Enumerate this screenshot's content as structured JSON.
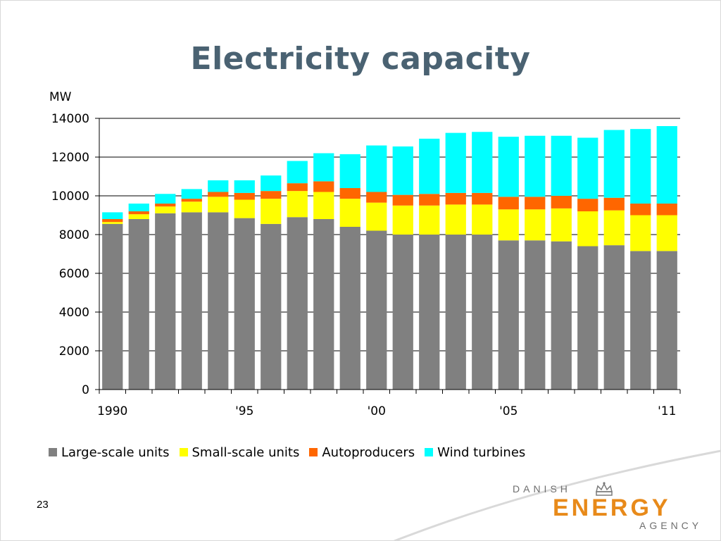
{
  "slide": {
    "title": "Electricity capacity",
    "page_number": "23"
  },
  "branding": {
    "line1": "DANISH",
    "line2": "ENERGY",
    "line3": "AGENCY",
    "accent_color": "#e88a1a",
    "logo_icon": "crown-icon"
  },
  "chart_data": {
    "type": "bar",
    "stacked": true,
    "ylabel": "MW",
    "ylim": [
      0,
      14000
    ],
    "yticks": [
      0,
      2000,
      4000,
      6000,
      8000,
      10000,
      12000,
      14000
    ],
    "grid": true,
    "legend_position": "bottom",
    "categories": [
      "1990",
      "1991",
      "1992",
      "1993",
      "1994",
      "1995",
      "1996",
      "1997",
      "1998",
      "1999",
      "2000",
      "2001",
      "2002",
      "2003",
      "2004",
      "2005",
      "2006",
      "2007",
      "2008",
      "2009",
      "2010",
      "2011"
    ],
    "x_tick_labels": [
      {
        "index": 0,
        "label": "1990"
      },
      {
        "index": 5,
        "label": "'95"
      },
      {
        "index": 10,
        "label": "'00"
      },
      {
        "index": 15,
        "label": "'05"
      },
      {
        "index": 21,
        "label": "'11"
      }
    ],
    "series": [
      {
        "name": "Large-scale units",
        "color": "#808080",
        "values": [
          8550,
          8800,
          9100,
          9150,
          9150,
          8850,
          8550,
          8900,
          8800,
          8400,
          8200,
          8000,
          8000,
          8000,
          8000,
          7700,
          7700,
          7650,
          7400,
          7450,
          7150,
          7150
        ]
      },
      {
        "name": "Small-scale units",
        "color": "#ffff00",
        "values": [
          100,
          250,
          350,
          550,
          800,
          950,
          1300,
          1350,
          1400,
          1450,
          1450,
          1500,
          1500,
          1550,
          1550,
          1600,
          1600,
          1700,
          1800,
          1800,
          1850,
          1850
        ]
      },
      {
        "name": "Autoproducers",
        "color": "#ff6600",
        "values": [
          150,
          150,
          150,
          150,
          250,
          350,
          400,
          400,
          550,
          550,
          550,
          550,
          600,
          600,
          600,
          650,
          650,
          650,
          650,
          650,
          600,
          600
        ]
      },
      {
        "name": "Wind turbines",
        "color": "#00ffff",
        "values": [
          350,
          400,
          500,
          500,
          600,
          650,
          800,
          1150,
          1450,
          1750,
          2400,
          2500,
          2850,
          3100,
          3150,
          3100,
          3150,
          3100,
          3150,
          3500,
          3850,
          4000
        ]
      }
    ]
  }
}
